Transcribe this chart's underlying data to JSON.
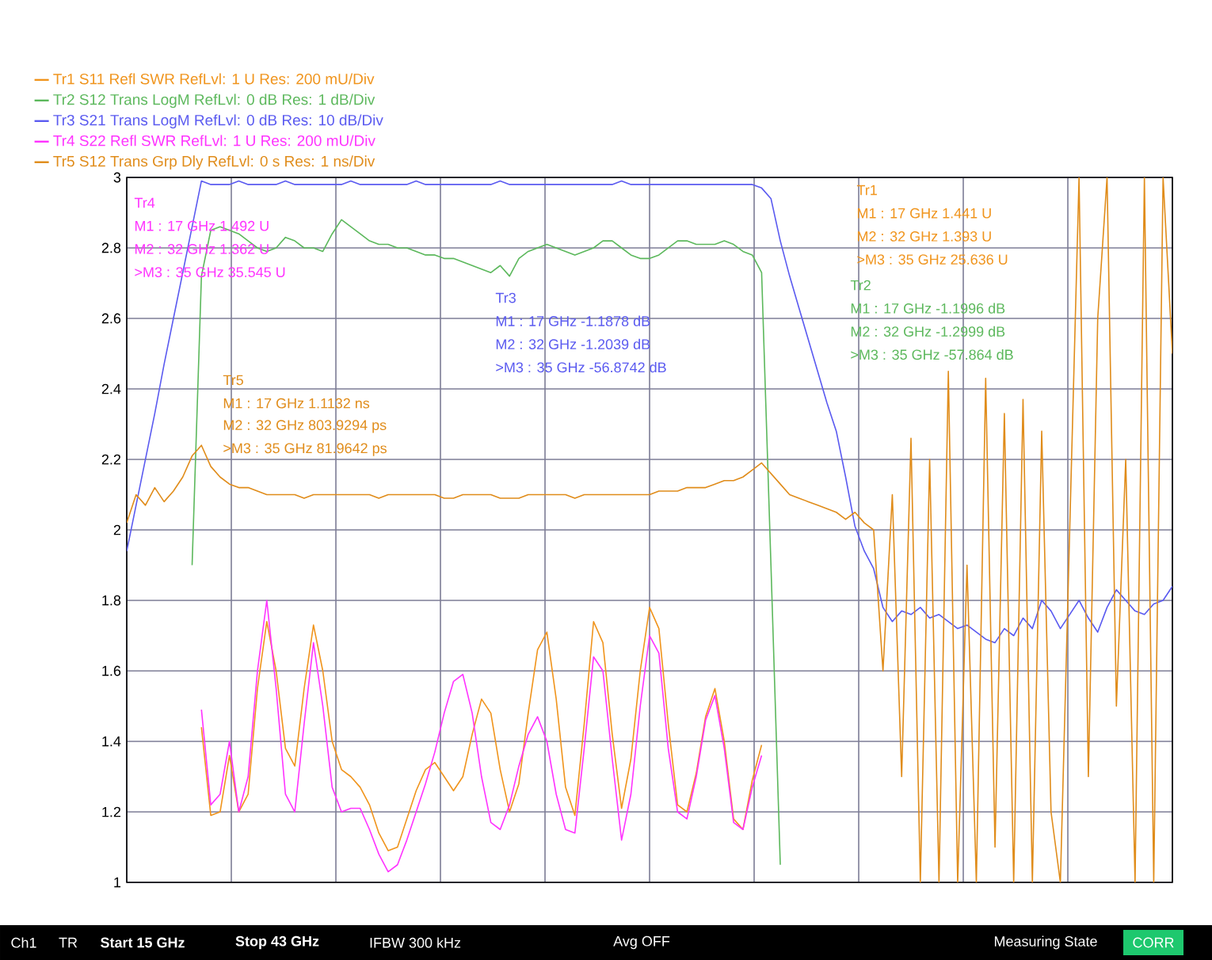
{
  "chart_data": {
    "type": "line",
    "categories": [
      null,
      null,
      null,
      null,
      null,
      null,
      null,
      null,
      null,
      null,
      null,
      null,
      null,
      null,
      null,
      null,
      null,
      null,
      null,
      null,
      null,
      null,
      null,
      null,
      null,
      null,
      null,
      null,
      null,
      null,
      null,
      null,
      null,
      null,
      null,
      null,
      null,
      null,
      null,
      null,
      null,
      null,
      null,
      null,
      null,
      null,
      null,
      null,
      null,
      null,
      null,
      null,
      null,
      null,
      null,
      null,
      null,
      null,
      null,
      null,
      null,
      null,
      null,
      null,
      null,
      null,
      null,
      null,
      null,
      null,
      null,
      null,
      null,
      null,
      null,
      null,
      null,
      null,
      null,
      null,
      null,
      null,
      null,
      null,
      null,
      null,
      null,
      null,
      null,
      null,
      null,
      null,
      null,
      null,
      null,
      null,
      null,
      null,
      null,
      null,
      null,
      null,
      null,
      null,
      null,
      null,
      null,
      null,
      null,
      null,
      null,
      null,
      null
    ],
    "ylim": [
      1,
      3
    ],
    "yticks": [
      1,
      1.2,
      1.4,
      1.6,
      1.8,
      2,
      2.2,
      2.4,
      2.6,
      2.8,
      3
    ],
    "grid": true,
    "legend": "top left",
    "series": [
      {
        "name": "Tr1 S11 Refl SWR RefLvl: 1  U Res: 200 mU/Div",
        "color": "#f0941c",
        "values": [
          null,
          null,
          null,
          null,
          null,
          null,
          null,
          null,
          1.44,
          1.19,
          1.2,
          1.36,
          1.2,
          1.25,
          1.55,
          1.74,
          1.6,
          1.38,
          1.33,
          1.55,
          1.73,
          1.6,
          1.4,
          1.32,
          1.3,
          1.27,
          1.22,
          1.14,
          1.09,
          1.1,
          1.18,
          1.26,
          1.32,
          1.34,
          1.3,
          1.26,
          1.3,
          1.42,
          1.52,
          1.48,
          1.32,
          1.2,
          1.28,
          1.48,
          1.66,
          1.71,
          1.52,
          1.27,
          1.19,
          1.45,
          1.74,
          1.68,
          1.42,
          1.21,
          1.35,
          1.6,
          1.78,
          1.72,
          1.45,
          1.22,
          1.2,
          1.31,
          1.47,
          1.55,
          1.4,
          1.18,
          1.15,
          1.29,
          1.39,
          null,
          null,
          null,
          null,
          null,
          null,
          null,
          null,
          null,
          null,
          null,
          null,
          null,
          null,
          null,
          null,
          null,
          null,
          null,
          null,
          null,
          null,
          null,
          null,
          null,
          null,
          null,
          null,
          null,
          null,
          null,
          null,
          null,
          null,
          null,
          null,
          null,
          null,
          null,
          null,
          null,
          null,
          null,
          null
        ]
      },
      {
        "name": "Tr2 S12 Trans LogM RefLvl: 0  dB Res: 1  dB/Div",
        "color": "#5cb85c",
        "values": [
          null,
          null,
          null,
          null,
          null,
          null,
          null,
          1.9,
          2.72,
          2.85,
          2.86,
          2.85,
          2.84,
          2.82,
          2.8,
          2.79,
          2.8,
          2.83,
          2.82,
          2.8,
          2.8,
          2.79,
          2.84,
          2.88,
          2.86,
          2.84,
          2.82,
          2.81,
          2.81,
          2.8,
          2.8,
          2.79,
          2.78,
          2.78,
          2.77,
          2.77,
          2.76,
          2.75,
          2.74,
          2.73,
          2.75,
          2.72,
          2.77,
          2.79,
          2.8,
          2.81,
          2.8,
          2.79,
          2.78,
          2.79,
          2.8,
          2.82,
          2.82,
          2.8,
          2.78,
          2.77,
          2.77,
          2.78,
          2.8,
          2.82,
          2.82,
          2.81,
          2.81,
          2.81,
          2.82,
          2.81,
          2.79,
          2.78,
          2.73,
          1.9,
          1.05,
          null,
          null,
          null,
          null,
          null,
          null,
          null,
          null,
          null,
          null,
          null,
          null,
          null,
          null,
          null,
          null,
          null,
          null,
          null,
          null,
          null,
          null,
          null,
          null,
          null,
          null,
          null,
          null,
          null,
          null,
          null,
          null,
          null,
          null,
          null,
          null,
          null,
          null,
          null,
          null,
          null,
          null
        ]
      },
      {
        "name": "Tr3 S21 Trans LogM RefLvl: 0  dB Res: 10  dB/Div",
        "color": "#5a5af0",
        "values": [
          1.94,
          2.07,
          2.2,
          2.33,
          2.47,
          2.6,
          2.73,
          2.86,
          2.99,
          2.98,
          2.98,
          2.98,
          2.99,
          2.98,
          2.98,
          2.98,
          2.98,
          2.99,
          2.98,
          2.98,
          2.98,
          2.98,
          2.98,
          2.98,
          2.99,
          2.98,
          2.98,
          2.98,
          2.98,
          2.98,
          2.98,
          2.99,
          2.98,
          2.98,
          2.98,
          2.98,
          2.98,
          2.98,
          2.98,
          2.98,
          2.99,
          2.98,
          2.98,
          2.98,
          2.98,
          2.98,
          2.98,
          2.98,
          2.98,
          2.98,
          2.98,
          2.98,
          2.98,
          2.99,
          2.98,
          2.98,
          2.98,
          2.98,
          2.98,
          2.98,
          2.98,
          2.98,
          2.98,
          2.98,
          2.98,
          2.98,
          2.98,
          2.98,
          2.97,
          2.94,
          2.82,
          2.72,
          2.63,
          2.54,
          2.45,
          2.36,
          2.28,
          2.15,
          2.01,
          1.94,
          1.89,
          1.78,
          1.74,
          1.77,
          1.76,
          1.78,
          1.75,
          1.76,
          1.74,
          1.72,
          1.73,
          1.71,
          1.69,
          1.68,
          1.72,
          1.7,
          1.75,
          1.72,
          1.8,
          1.77,
          1.72,
          1.76,
          1.8,
          1.75,
          1.71,
          1.78,
          1.83,
          1.8,
          1.77,
          1.76,
          1.79,
          1.8,
          1.84
        ]
      },
      {
        "name": "Tr4 S22 Refl SWR RefLvl: 1  U Res: 200 mU/Div",
        "color": "#ff33ff",
        "values": [
          null,
          null,
          null,
          null,
          null,
          null,
          null,
          null,
          1.49,
          1.22,
          1.25,
          1.4,
          1.2,
          1.3,
          1.6,
          1.8,
          1.55,
          1.25,
          1.2,
          1.45,
          1.68,
          1.5,
          1.27,
          1.2,
          1.21,
          1.21,
          1.15,
          1.08,
          1.03,
          1.05,
          1.12,
          1.2,
          1.28,
          1.37,
          1.48,
          1.57,
          1.59,
          1.48,
          1.3,
          1.17,
          1.15,
          1.22,
          1.33,
          1.42,
          1.47,
          1.4,
          1.25,
          1.15,
          1.14,
          1.38,
          1.64,
          1.6,
          1.35,
          1.12,
          1.25,
          1.5,
          1.7,
          1.65,
          1.38,
          1.2,
          1.18,
          1.3,
          1.46,
          1.53,
          1.38,
          1.17,
          1.15,
          1.27,
          1.36,
          null,
          null,
          null,
          null,
          null,
          null,
          null,
          null,
          null,
          null,
          null,
          null,
          null,
          null,
          null,
          null,
          null,
          null,
          null,
          null,
          null,
          null,
          null,
          null,
          null,
          null,
          null,
          null,
          null,
          null,
          null,
          null,
          null,
          null,
          null,
          null,
          null,
          null,
          null,
          null,
          null,
          null,
          null,
          null
        ]
      },
      {
        "name": "Tr5 S12 Trans Grp Dly RefLvl: 0  s Res: 1 ns/Div",
        "color": "#e08c1a",
        "values": [
          2.02,
          2.1,
          2.07,
          2.12,
          2.08,
          2.11,
          2.15,
          2.21,
          2.24,
          2.18,
          2.15,
          2.13,
          2.12,
          2.12,
          2.11,
          2.1,
          2.1,
          2.1,
          2.1,
          2.09,
          2.1,
          2.1,
          2.1,
          2.1,
          2.1,
          2.1,
          2.1,
          2.09,
          2.1,
          2.1,
          2.1,
          2.1,
          2.1,
          2.1,
          2.09,
          2.09,
          2.1,
          2.1,
          2.1,
          2.1,
          2.09,
          2.09,
          2.09,
          2.1,
          2.1,
          2.1,
          2.1,
          2.1,
          2.09,
          2.1,
          2.1,
          2.1,
          2.1,
          2.1,
          2.1,
          2.1,
          2.1,
          2.11,
          2.11,
          2.11,
          2.12,
          2.12,
          2.12,
          2.13,
          2.14,
          2.14,
          2.15,
          2.17,
          2.19,
          2.16,
          2.13,
          2.1,
          2.09,
          2.08,
          2.07,
          2.06,
          2.05,
          2.03,
          2.05,
          2.02,
          2.0,
          1.6,
          2.1,
          1.3,
          2.26,
          1.0,
          2.2,
          1.0,
          2.45,
          1.0,
          1.9,
          1.0,
          2.43,
          1.1,
          2.33,
          1.0,
          2.37,
          1.0,
          2.28,
          1.2,
          1.0,
          2.0,
          3.0,
          1.3,
          2.6,
          3.0,
          1.5,
          2.2,
          1.0,
          3.0,
          1.0,
          3.0,
          2.5
        ]
      }
    ],
    "annotations": [
      "Tr4",
      "M1 :  17 GHz  1.492  U",
      "M2 :  32 GHz  1.362  U",
      ">M3 :  35 GHz  35.545  U",
      "Tr3",
      "M1 :  17 GHz  -1.1878  dB",
      "M2 :  32 GHz  -1.2039  dB",
      ">M3 :  35 GHz  -56.8742  dB",
      "Tr1",
      "M1 :  17 GHz  1.441  U",
      "M2 :  32 GHz  1.393  U",
      ">M3 :  35 GHz  25.636  U",
      "Tr2",
      "M1 :  17 GHz  -1.1996  dB",
      "M2 :  32 GHz  -1.2999  dB",
      ">M3 :  35 GHz  -57.864  dB",
      "Tr5",
      "M1 :  17 GHz  1.1132  ns",
      "M2 :  32 GHz  803.9294  ps",
      ">M3 :  35 GHz  81.9642  ps",
      "Ch1",
      "TR",
      "Start 15 GHz",
      "Stop 43 GHz",
      "IFBW 300 kHz",
      "Avg OFF",
      "Measuring State",
      "CORR"
    ]
  }
}
